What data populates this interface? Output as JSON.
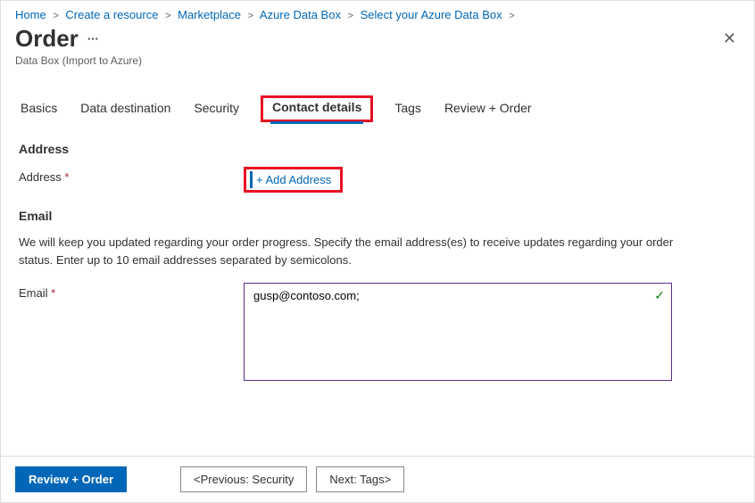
{
  "breadcrumb": {
    "items": [
      {
        "label": "Home"
      },
      {
        "label": "Create a resource"
      },
      {
        "label": "Marketplace"
      },
      {
        "label": "Azure Data Box"
      },
      {
        "label": "Select your Azure Data Box"
      }
    ],
    "separator": ">"
  },
  "header": {
    "title": "Order",
    "subtitle": "Data Box (Import to Azure)"
  },
  "tabs": {
    "items": [
      {
        "label": "Basics"
      },
      {
        "label": "Data destination"
      },
      {
        "label": "Security"
      },
      {
        "label": "Contact details"
      },
      {
        "label": "Tags"
      },
      {
        "label": "Review + Order"
      }
    ],
    "active_index": 3,
    "highlight_index": 3
  },
  "address": {
    "section_title": "Address",
    "field_label": "Address",
    "required_mark": "*",
    "add_button_label": "+ Add Address"
  },
  "email": {
    "section_title": "Email",
    "description": "We will keep you updated regarding your order progress. Specify the email address(es) to receive updates regarding your order status. Enter up to 10 email addresses separated by semicolons.",
    "field_label": "Email",
    "required_mark": "*",
    "value": "gusp@contoso.com;",
    "valid": true
  },
  "footer": {
    "primary_label": "Review + Order",
    "prev_label": "<Previous: Security",
    "next_label": "Next: Tags>"
  },
  "colors": {
    "link": "#0067b8",
    "highlight_border": "#e81123",
    "input_border": "#5c2d91",
    "success": "#107c10",
    "required": "#a4262c"
  }
}
